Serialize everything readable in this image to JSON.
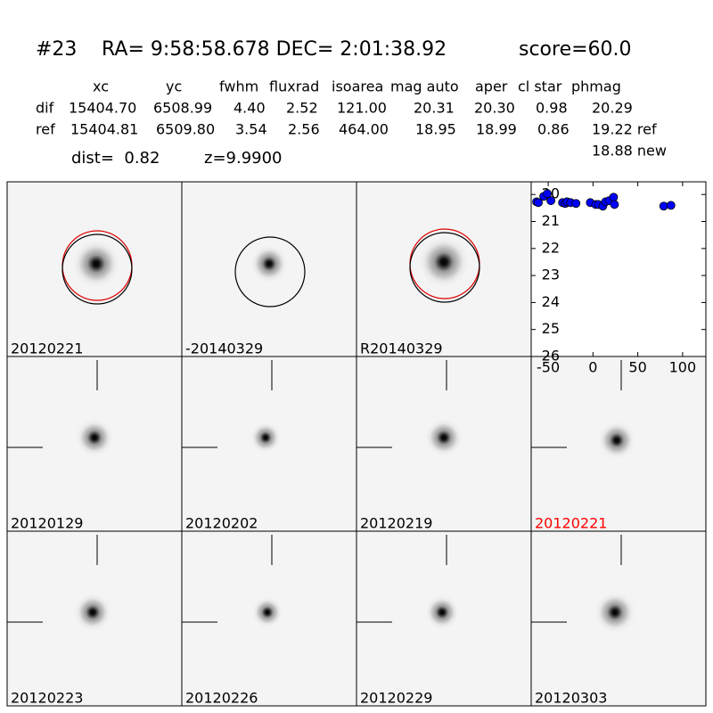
{
  "header": {
    "id": "#23",
    "coords": "RA= 9:58:58.678 DEC= 2:01:38.92",
    "score": "score=60.0"
  },
  "table": {
    "columns": [
      "xc",
      "yc",
      "fwhm",
      "fluxrad",
      "isoarea",
      "mag auto",
      "aper",
      "cl star",
      "phmag"
    ],
    "rows": [
      [
        "dif",
        "15404.70",
        "6508.99",
        "4.40",
        "2.52",
        "121.00",
        "20.31",
        "20.30",
        "0.98",
        "20.29"
      ],
      [
        "ref",
        "15404.81",
        "6509.80",
        "3.54",
        "2.56",
        "464.00",
        "18.95",
        "18.99",
        "0.86",
        "19.22 ref"
      ]
    ],
    "extra": "18.88 new"
  },
  "dist": {
    "dist": "dist=  0.82",
    "z": "z=9.9900"
  },
  "panels": [
    {
      "label": "20120221"
    },
    {
      "label": "-20140329"
    },
    {
      "label": "R20140329"
    },
    {
      "label": "20120129"
    },
    {
      "label": "20120202"
    },
    {
      "label": "20120219"
    },
    {
      "label": "20120221",
      "color": "#ff0000"
    },
    {
      "label": "20120223"
    },
    {
      "label": "20120226"
    },
    {
      "label": "20120229"
    },
    {
      "label": "20120303"
    }
  ],
  "chart_data": {
    "type": "scatter",
    "color": "#0000ff",
    "x": [
      -63,
      -61,
      -55,
      -51,
      -47,
      -34,
      -31,
      -29,
      -25,
      -19,
      -3,
      3,
      6,
      11,
      14,
      18,
      23,
      24,
      79,
      87
    ],
    "values": [
      20.27,
      20.3,
      20.07,
      19.97,
      20.23,
      20.3,
      20.33,
      20.27,
      20.3,
      20.33,
      20.3,
      20.37,
      20.37,
      20.43,
      20.27,
      20.23,
      20.1,
      20.37,
      20.43,
      20.4
    ],
    "xlim": [
      -69,
      126
    ],
    "xticks": [
      -50,
      0,
      50,
      100
    ],
    "ylim": [
      19.53,
      26
    ],
    "yticks": [
      20,
      21,
      22,
      23,
      24,
      25,
      26
    ],
    "invert_y": true
  }
}
